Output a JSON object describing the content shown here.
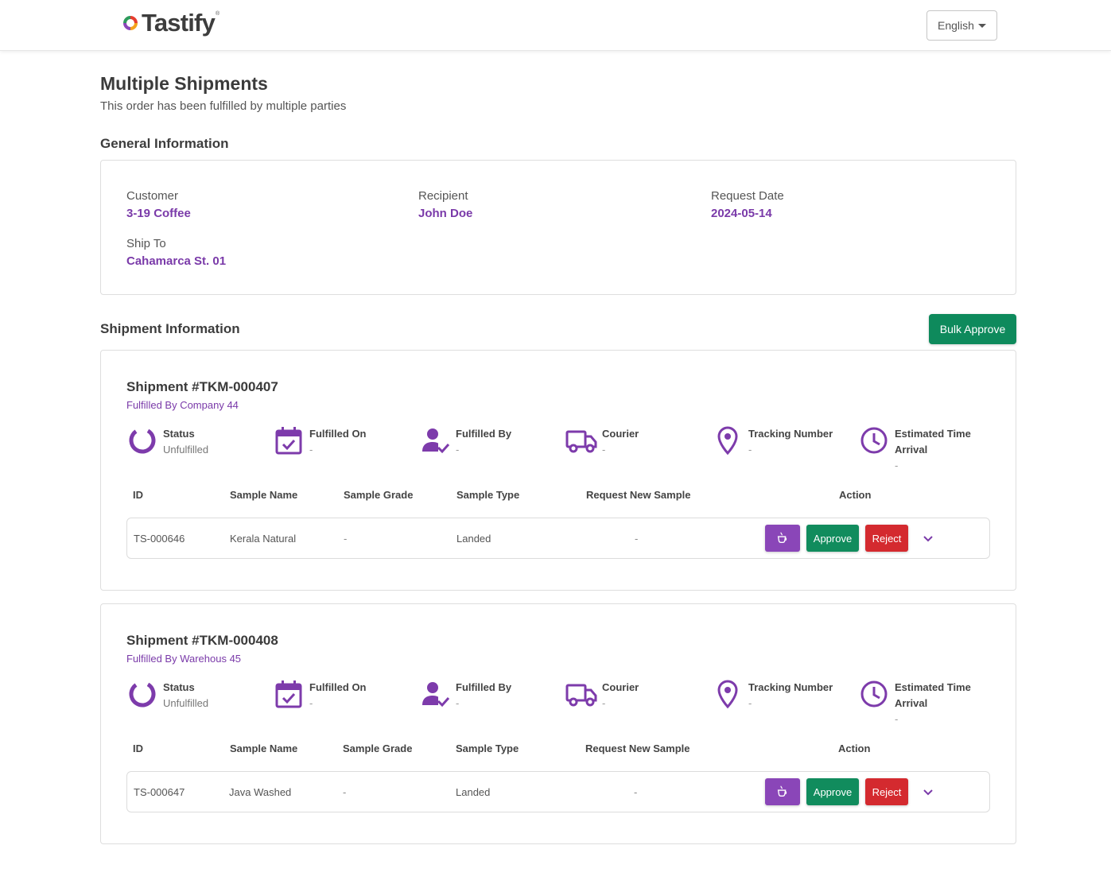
{
  "header": {
    "brand": "Tastify",
    "brand_mark": "®",
    "language": "English"
  },
  "page": {
    "title": "Multiple Shipments",
    "subtitle": "This order has been fulfilled by multiple parties"
  },
  "general": {
    "title": "General Information",
    "customer_label": "Customer",
    "customer": "3-19 Coffee",
    "recipient_label": "Recipient",
    "recipient": "John Doe",
    "request_date_label": "Request Date",
    "request_date": "2024-05-14",
    "ship_to_label": "Ship To",
    "ship_to": "Cahamarca St. 01"
  },
  "shipment_section": {
    "title": "Shipment Information",
    "bulk_approve": "Bulk Approve"
  },
  "labels": {
    "status": "Status",
    "fulfilled_on": "Fulfilled On",
    "fulfilled_by": "Fulfilled By",
    "courier": "Courier",
    "tracking_number": "Tracking Number",
    "eta_line1": "Estimated Time",
    "eta_line2": "Arrival",
    "col_id": "ID",
    "col_sample_name": "Sample Name",
    "col_sample_grade": "Sample Grade",
    "col_sample_type": "Sample Type",
    "col_request_new": "Request New Sample",
    "col_action": "Action",
    "approve": "Approve",
    "reject": "Reject"
  },
  "shipments": [
    {
      "title": "Shipment #TKM-000407",
      "fulfilled_by_line": "Fulfilled By Company 44",
      "status": "Unfulfilled",
      "fulfilled_on": "-",
      "fulfilled_by": "-",
      "courier": "-",
      "tracking_number": "-",
      "eta": "-",
      "row": {
        "id": "TS-000646",
        "sample_name": "Kerala Natural",
        "sample_grade": "-",
        "sample_type": "Landed",
        "request_new": "-"
      }
    },
    {
      "title": "Shipment #TKM-000408",
      "fulfilled_by_line": "Fulfilled By Warehous 45",
      "status": "Unfulfilled",
      "fulfilled_on": "-",
      "fulfilled_by": "-",
      "courier": "-",
      "tracking_number": "-",
      "eta": "-",
      "row": {
        "id": "TS-000647",
        "sample_name": "Java Washed",
        "sample_grade": "-",
        "sample_type": "Landed",
        "request_new": "-"
      }
    }
  ],
  "colors": {
    "accent": "#7a3aa9",
    "approve": "#118c5d",
    "reject": "#d42a2f",
    "bulk_approve": "#0e8a5c"
  },
  "icons": [
    "status-ring-icon",
    "calendar-check-icon",
    "user-check-icon",
    "truck-icon",
    "map-pin-icon",
    "clock-icon",
    "coffee-cup-icon",
    "chevron-down-icon",
    "caret-down-icon"
  ]
}
